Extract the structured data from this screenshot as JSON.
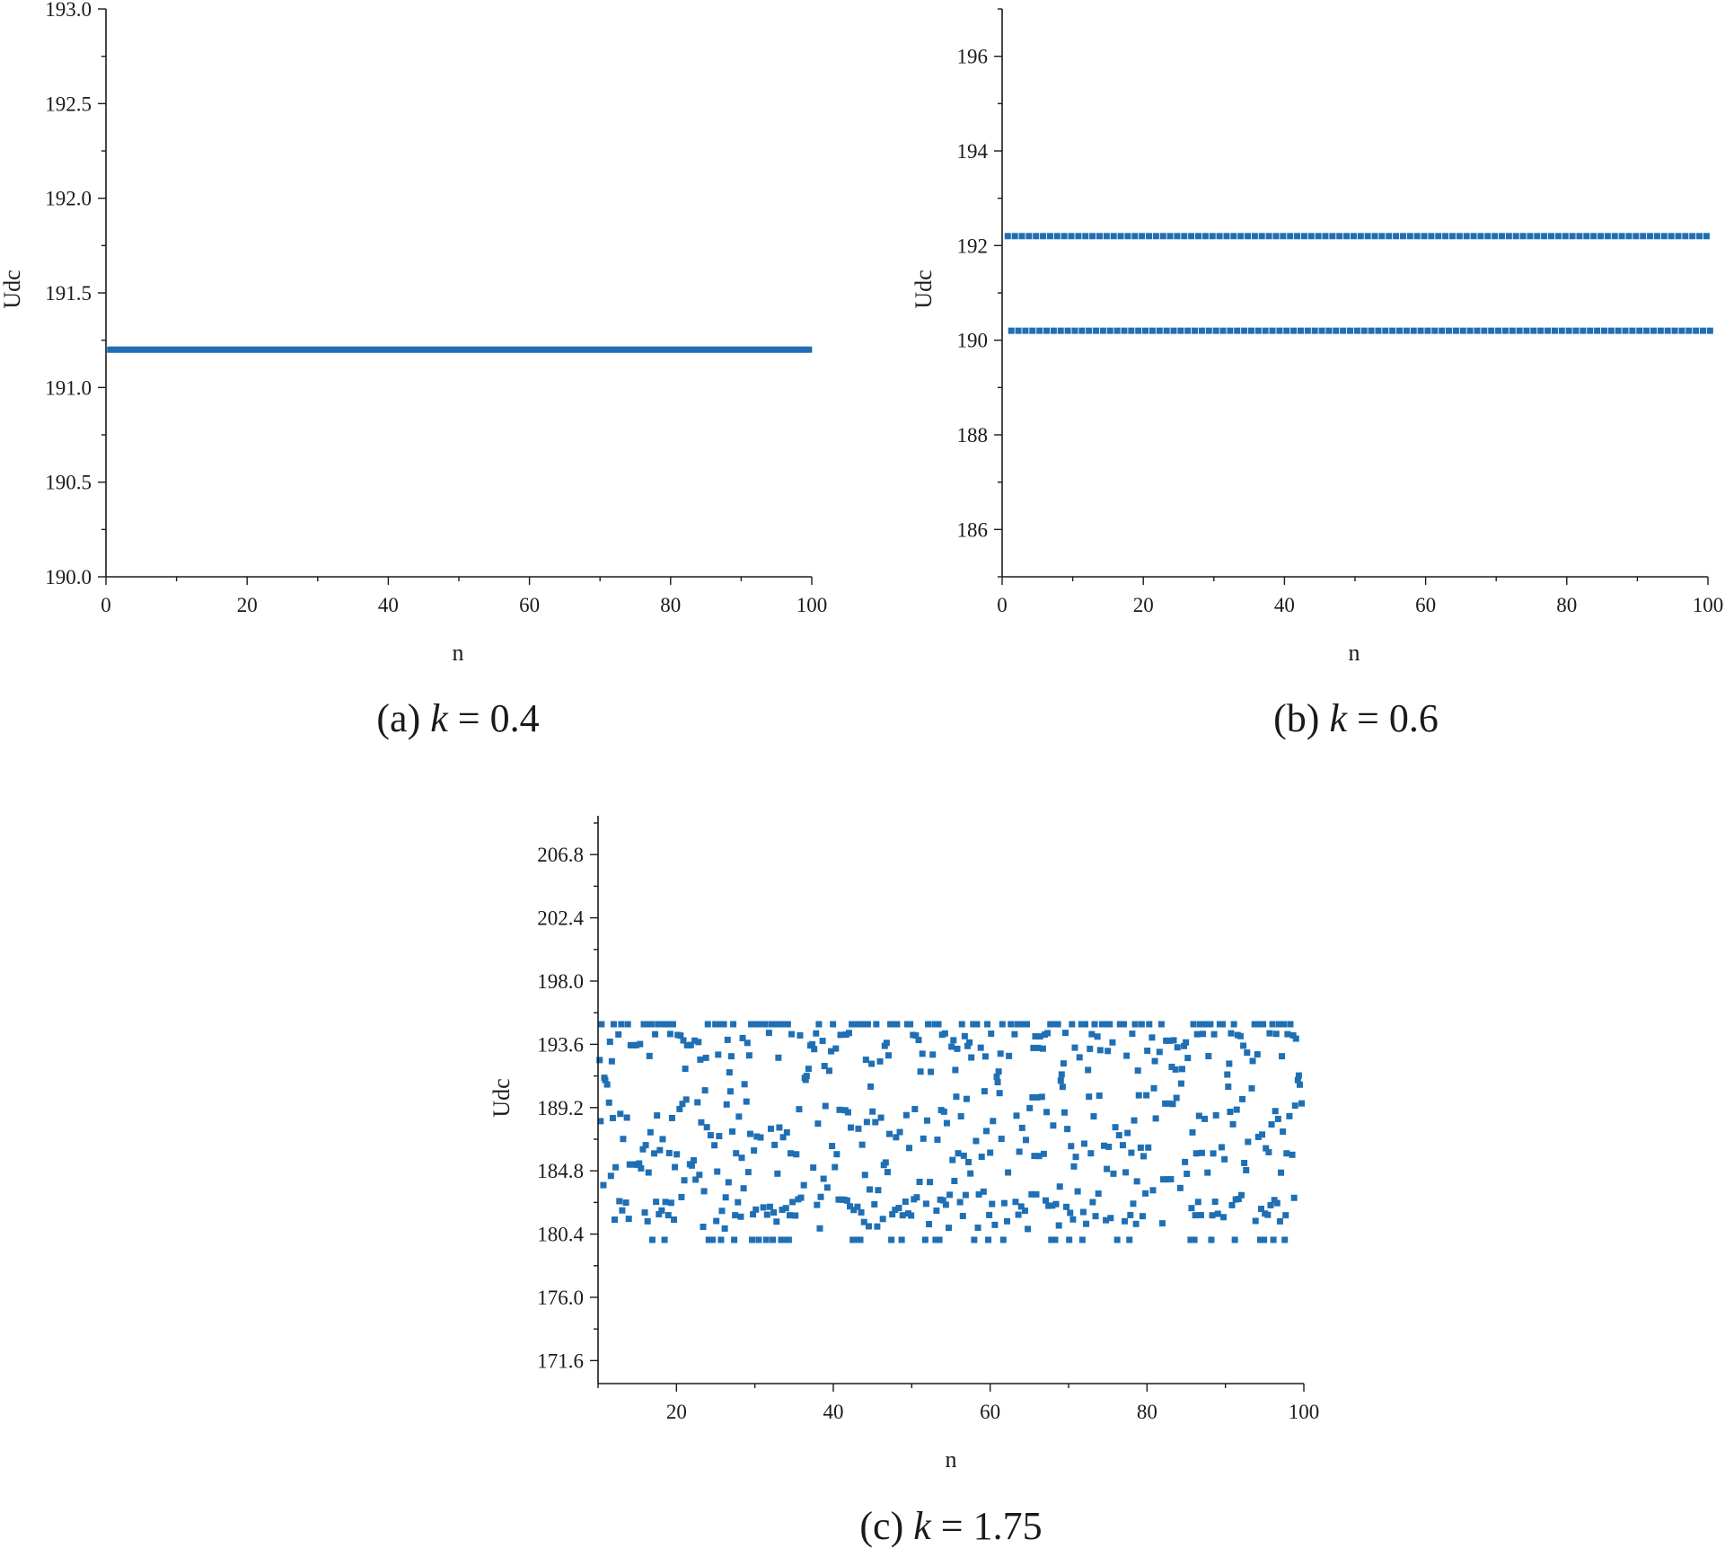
{
  "chart_data": [
    {
      "type": "scatter",
      "panel": "a",
      "caption": {
        "prefix": "(a) ",
        "var": "k",
        "rest": " = 0.4"
      },
      "xlabel": "n",
      "ylabel": "Udc",
      "xlim": [
        0,
        100
      ],
      "ylim": [
        190.0,
        193.0
      ],
      "xticks": [
        0,
        20,
        40,
        60,
        80,
        100
      ],
      "xtick_labels": [
        "0",
        "20",
        "40",
        "60",
        "80",
        "100"
      ],
      "yticks": [
        190.0,
        190.5,
        191.0,
        191.5,
        192.0,
        192.5,
        193.0
      ],
      "ytick_labels": [
        "190.0",
        "190.5",
        "191.0",
        "191.5",
        "192.0",
        "192.5",
        "193.0"
      ],
      "grid": false,
      "marker_color": "#1f6fb4",
      "series": [
        {
          "x": "n = 1..100",
          "levels": [
            191.2
          ]
        }
      ]
    },
    {
      "type": "scatter",
      "panel": "b",
      "caption": {
        "prefix": "(b) ",
        "var": "k",
        "rest": " = 0.6"
      },
      "xlabel": "n",
      "ylabel": "Udc",
      "xlim": [
        0,
        100
      ],
      "ylim": [
        185,
        197
      ],
      "xticks": [
        0,
        20,
        40,
        60,
        80,
        100
      ],
      "xtick_labels": [
        "0",
        "20",
        "40",
        "60",
        "80",
        "100"
      ],
      "yticks": [
        186,
        188,
        190,
        192,
        194,
        196
      ],
      "ytick_labels": [
        "186",
        "188",
        "190",
        "192",
        "194",
        "196"
      ],
      "grid": false,
      "marker_color": "#1f6fb4",
      "series": [
        {
          "x": "n = 1..100",
          "levels": [
            192.2,
            190.2
          ]
        }
      ]
    },
    {
      "type": "scatter",
      "panel": "c",
      "caption": {
        "prefix": "(c) ",
        "var": "k",
        "rest": " = 1.75"
      },
      "xlabel": "n",
      "ylabel": "Udc",
      "xlim": [
        10,
        100
      ],
      "ylim": [
        170,
        209.5
      ],
      "xticks": [
        20,
        40,
        60,
        80,
        100
      ],
      "xtick_labels": [
        "20",
        "40",
        "60",
        "80",
        "100"
      ],
      "yticks": [
        171.6,
        176.0,
        180.4,
        184.8,
        189.2,
        193.6,
        198.0,
        202.4,
        206.8
      ],
      "ytick_labels": [
        "171.6",
        "176.0",
        "180.4",
        "184.8",
        "189.2",
        "193.6",
        "198.0",
        "202.4",
        "206.8"
      ],
      "grid": false,
      "marker_color": "#1f6fb4",
      "series": [
        {
          "x": "n = 10..100 (step 0.1)",
          "y_range": [
            180.0,
            195.0
          ],
          "distribution": "chaotic, dense at bounds"
        }
      ]
    }
  ]
}
